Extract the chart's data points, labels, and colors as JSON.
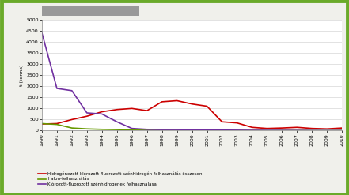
{
  "years": [
    1990,
    1991,
    1992,
    1993,
    1994,
    1995,
    1996,
    1997,
    1998,
    1999,
    2000,
    2001,
    2002,
    2003,
    2004,
    2005,
    2006,
    2007,
    2008,
    2009,
    2010
  ],
  "hcfc": [
    300,
    320,
    500,
    650,
    850,
    950,
    1000,
    900,
    1300,
    1350,
    1200,
    1100,
    400,
    350,
    150,
    100,
    120,
    150,
    100,
    80,
    120
  ],
  "halon": [
    320,
    280,
    120,
    80,
    60,
    50,
    30,
    20,
    15,
    10,
    10,
    8,
    8,
    5,
    5,
    5,
    5,
    5,
    5,
    5,
    5
  ],
  "cfc": [
    4400,
    1900,
    1800,
    800,
    750,
    400,
    100,
    60,
    50,
    50,
    40,
    30,
    25,
    20,
    15,
    12,
    10,
    8,
    6,
    5,
    4
  ],
  "hcfc_color": "#cc0000",
  "halon_color": "#669900",
  "cfc_color": "#7030a0",
  "hcfc_label": "Hidrogénezett-klórozott-fluorozott szénhidrogén-felhasználás összesen",
  "halon_label": "Halon-felhasználás",
  "cfc_label": "Klórozott-fluorozott szénhidrogének felhasználása",
  "ylabel": "t (tonna)",
  "ylim": [
    0,
    5000
  ],
  "yticks": [
    0,
    500,
    1000,
    1500,
    2000,
    2500,
    3000,
    3500,
    4000,
    4500,
    5000
  ],
  "bg_outer": "#f0f0eb",
  "bg_plot": "#ffffff",
  "border_color": "#6aaa2a",
  "grid_color": "#cccccc",
  "title_bar_color": "#999999"
}
